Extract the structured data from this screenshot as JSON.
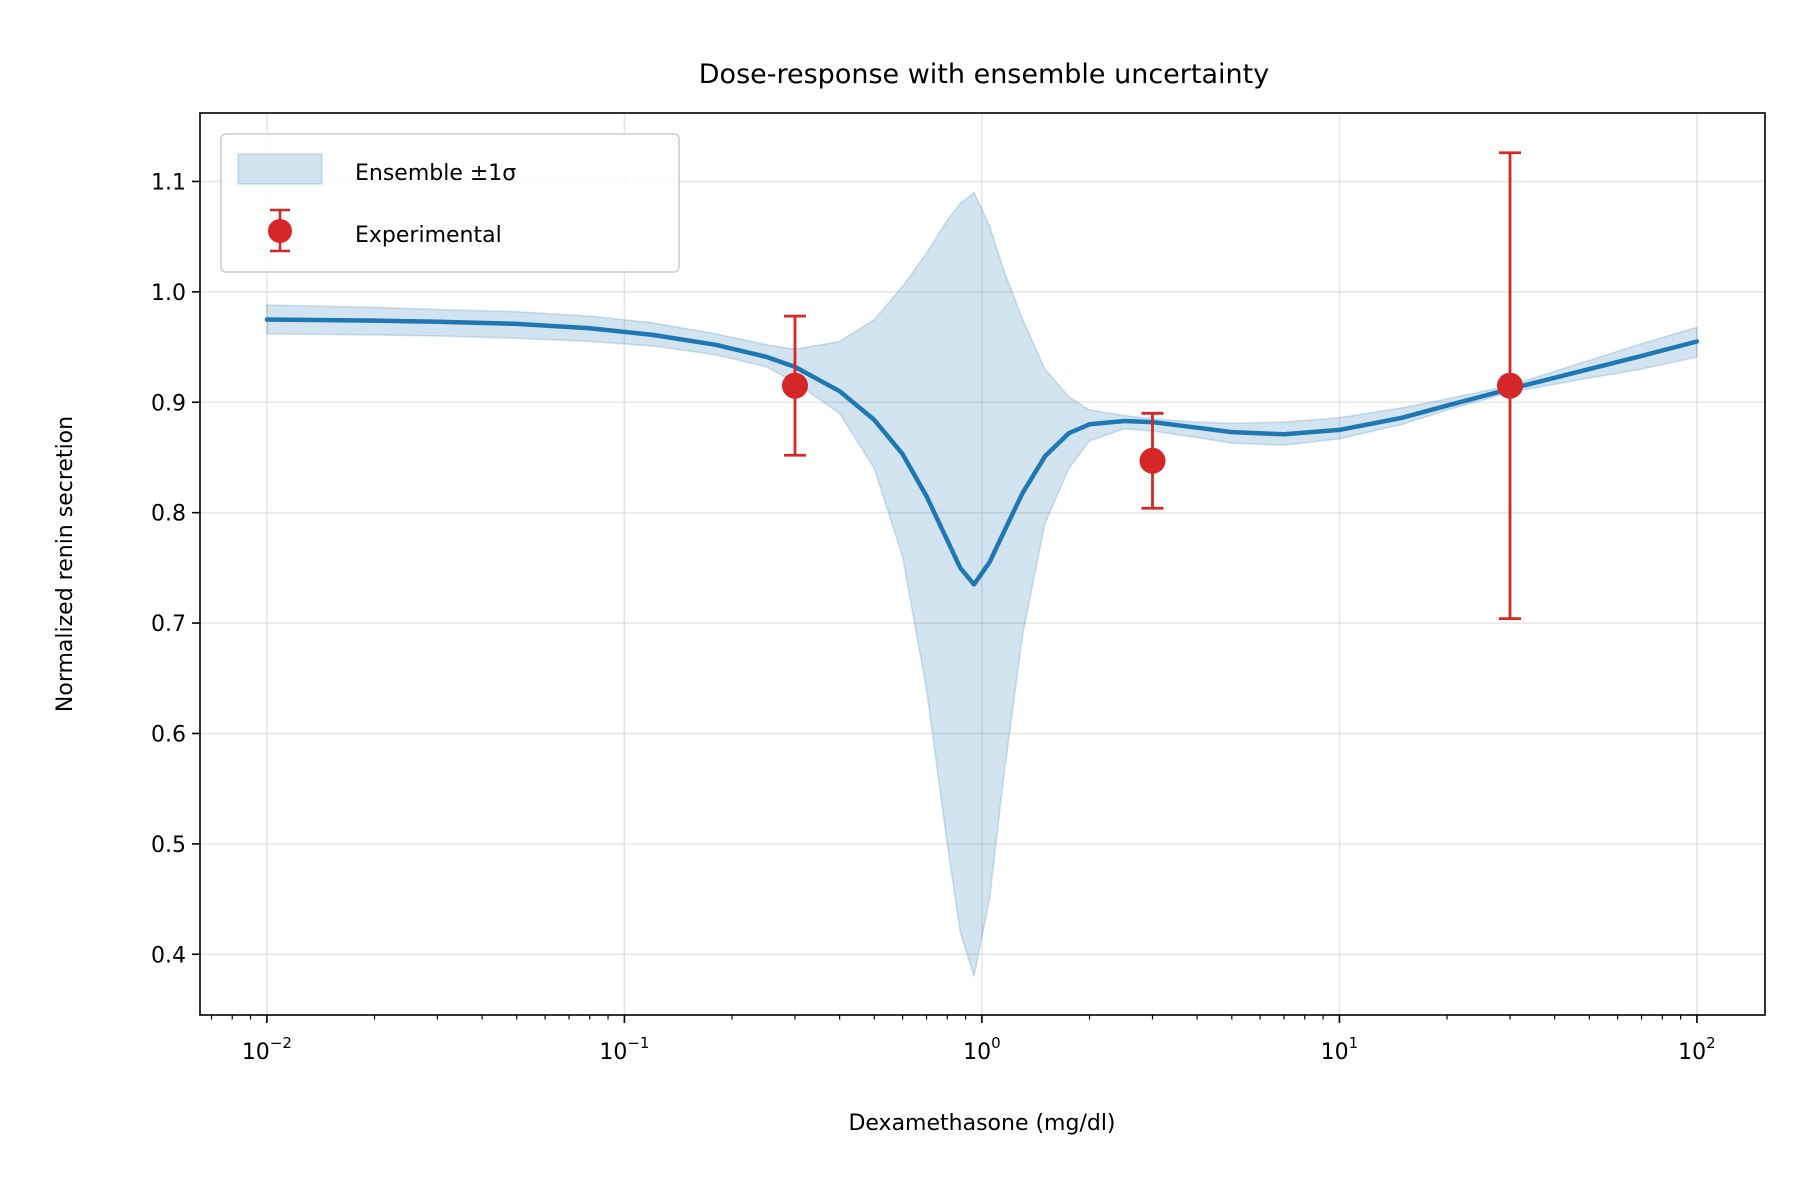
{
  "chart_data": {
    "type": "line",
    "title": "Dose-response with ensemble uncertainty",
    "xlabel": "Dexamethasone (mg/dl)",
    "ylabel": "Normalized renin secretion",
    "xscale": "log",
    "xlim": [
      0.0065,
      155
    ],
    "ylim": [
      0.345,
      1.162
    ],
    "grid": true,
    "legend_position": "top-left",
    "x_ticks": [
      {
        "base": "10",
        "exp": "−2",
        "value": 0.01
      },
      {
        "base": "10",
        "exp": "−1",
        "value": 0.1
      },
      {
        "base": "10",
        "exp": "0",
        "value": 1
      },
      {
        "base": "10",
        "exp": "1",
        "value": 10
      },
      {
        "base": "10",
        "exp": "2",
        "value": 100
      }
    ],
    "y_ticks": [
      {
        "label": "0.4",
        "value": 0.4
      },
      {
        "label": "0.5",
        "value": 0.5
      },
      {
        "label": "0.6",
        "value": 0.6
      },
      {
        "label": "0.7",
        "value": 0.7
      },
      {
        "label": "0.8",
        "value": 0.8
      },
      {
        "label": "0.9",
        "value": 0.9
      },
      {
        "label": "1.0",
        "value": 1.0
      },
      {
        "label": "1.1",
        "value": 1.1
      }
    ],
    "series": [
      {
        "name": "Ensemble ±1σ",
        "kind": "band",
        "color": "#1f77b4",
        "points": [
          {
            "x": 0.01,
            "lower": 0.962,
            "upper": 0.988
          },
          {
            "x": 0.02,
            "lower": 0.961,
            "upper": 0.986
          },
          {
            "x": 0.03,
            "lower": 0.96,
            "upper": 0.984
          },
          {
            "x": 0.05,
            "lower": 0.958,
            "upper": 0.982
          },
          {
            "x": 0.08,
            "lower": 0.955,
            "upper": 0.978
          },
          {
            "x": 0.12,
            "lower": 0.951,
            "upper": 0.972
          },
          {
            "x": 0.18,
            "lower": 0.943,
            "upper": 0.962
          },
          {
            "x": 0.25,
            "lower": 0.932,
            "upper": 0.952
          },
          {
            "x": 0.3,
            "lower": 0.918,
            "upper": 0.948
          },
          {
            "x": 0.4,
            "lower": 0.89,
            "upper": 0.955
          },
          {
            "x": 0.5,
            "lower": 0.84,
            "upper": 0.975
          },
          {
            "x": 0.6,
            "lower": 0.76,
            "upper": 1.005
          },
          {
            "x": 0.7,
            "lower": 0.64,
            "upper": 1.035
          },
          {
            "x": 0.8,
            "lower": 0.5,
            "upper": 1.065
          },
          {
            "x": 0.87,
            "lower": 0.42,
            "upper": 1.08
          },
          {
            "x": 0.95,
            "lower": 0.38,
            "upper": 1.09
          },
          {
            "x": 1.05,
            "lower": 0.45,
            "upper": 1.06
          },
          {
            "x": 1.15,
            "lower": 0.56,
            "upper": 1.02
          },
          {
            "x": 1.3,
            "lower": 0.69,
            "upper": 0.975
          },
          {
            "x": 1.5,
            "lower": 0.79,
            "upper": 0.93
          },
          {
            "x": 1.75,
            "lower": 0.84,
            "upper": 0.905
          },
          {
            "x": 2.0,
            "lower": 0.865,
            "upper": 0.893
          },
          {
            "x": 2.5,
            "lower": 0.876,
            "upper": 0.888
          },
          {
            "x": 3.0,
            "lower": 0.874,
            "upper": 0.885
          },
          {
            "x": 4.0,
            "lower": 0.868,
            "upper": 0.882
          },
          {
            "x": 5.0,
            "lower": 0.863,
            "upper": 0.881
          },
          {
            "x": 7.0,
            "lower": 0.861,
            "upper": 0.882
          },
          {
            "x": 10.0,
            "lower": 0.867,
            "upper": 0.886
          },
          {
            "x": 15.0,
            "lower": 0.88,
            "upper": 0.895
          },
          {
            "x": 20.0,
            "lower": 0.893,
            "upper": 0.903
          },
          {
            "x": 30.0,
            "lower": 0.909,
            "upper": 0.915
          },
          {
            "x": 50.0,
            "lower": 0.922,
            "upper": 0.938
          },
          {
            "x": 70.0,
            "lower": 0.93,
            "upper": 0.953
          },
          {
            "x": 100.0,
            "lower": 0.941,
            "upper": 0.968
          }
        ]
      },
      {
        "name": "",
        "kind": "line",
        "color": "#1f77b4",
        "points": [
          {
            "x": 0.01,
            "y": 0.975
          },
          {
            "x": 0.02,
            "y": 0.974
          },
          {
            "x": 0.03,
            "y": 0.973
          },
          {
            "x": 0.05,
            "y": 0.971
          },
          {
            "x": 0.08,
            "y": 0.967
          },
          {
            "x": 0.12,
            "y": 0.961
          },
          {
            "x": 0.18,
            "y": 0.952
          },
          {
            "x": 0.25,
            "y": 0.941
          },
          {
            "x": 0.3,
            "y": 0.932
          },
          {
            "x": 0.4,
            "y": 0.91
          },
          {
            "x": 0.5,
            "y": 0.884
          },
          {
            "x": 0.6,
            "y": 0.853
          },
          {
            "x": 0.7,
            "y": 0.815
          },
          {
            "x": 0.8,
            "y": 0.775
          },
          {
            "x": 0.87,
            "y": 0.75
          },
          {
            "x": 0.95,
            "y": 0.735
          },
          {
            "x": 1.05,
            "y": 0.755
          },
          {
            "x": 1.15,
            "y": 0.782
          },
          {
            "x": 1.3,
            "y": 0.818
          },
          {
            "x": 1.5,
            "y": 0.851
          },
          {
            "x": 1.75,
            "y": 0.872
          },
          {
            "x": 2.0,
            "y": 0.88
          },
          {
            "x": 2.5,
            "y": 0.883
          },
          {
            "x": 3.0,
            "y": 0.882
          },
          {
            "x": 4.0,
            "y": 0.877
          },
          {
            "x": 5.0,
            "y": 0.873
          },
          {
            "x": 7.0,
            "y": 0.871
          },
          {
            "x": 10.0,
            "y": 0.875
          },
          {
            "x": 15.0,
            "y": 0.886
          },
          {
            "x": 20.0,
            "y": 0.897
          },
          {
            "x": 30.0,
            "y": 0.912
          },
          {
            "x": 50.0,
            "y": 0.93
          },
          {
            "x": 70.0,
            "y": 0.942
          },
          {
            "x": 100.0,
            "y": 0.955
          }
        ]
      },
      {
        "name": "Experimental",
        "kind": "errorbar",
        "color": "#d62728",
        "points": [
          {
            "x": 0.3,
            "y": 0.915,
            "err": 0.063
          },
          {
            "x": 3.0,
            "y": 0.847,
            "err": 0.043
          },
          {
            "x": 30.0,
            "y": 0.915,
            "err": 0.211
          }
        ]
      }
    ]
  }
}
